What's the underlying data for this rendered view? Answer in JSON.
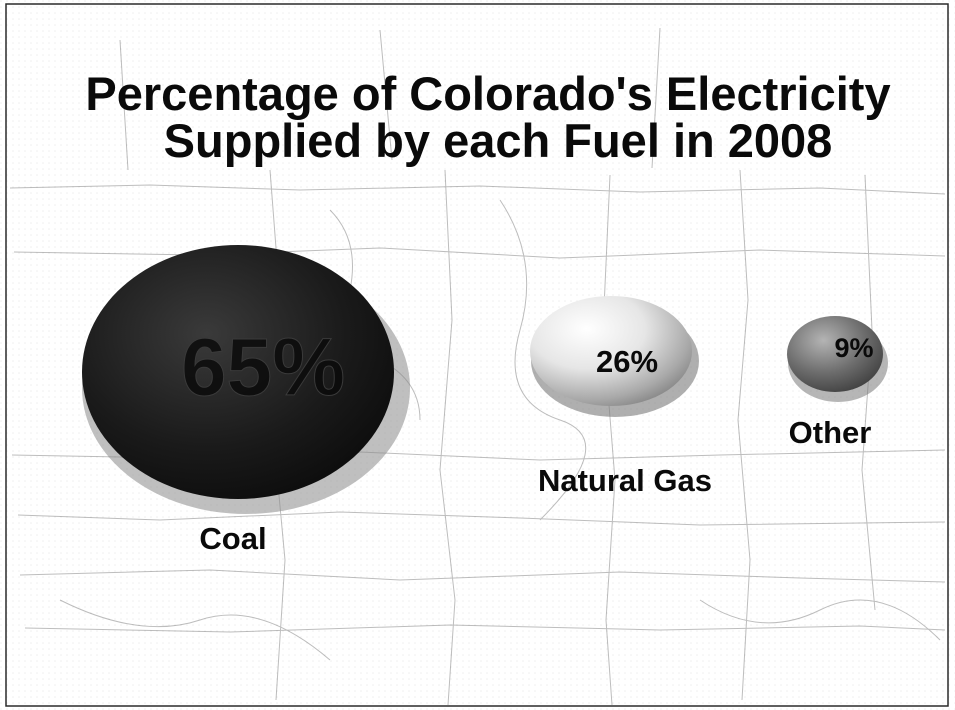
{
  "chart_data": {
    "type": "bubble",
    "title": [
      "Percentage of Colorado's Electricity",
      "Supplied by each Fuel in 2008"
    ],
    "categories": [
      "Coal",
      "Natural Gas",
      "Other"
    ],
    "values": [
      65,
      26,
      9
    ],
    "value_labels": [
      "65%",
      "26%",
      "9%"
    ],
    "unit": "%",
    "legend": "none",
    "grid": false,
    "colors": {
      "Coal": "#1c1c1c",
      "Natural Gas": "#d9d9d9",
      "Other": "#6e6e6e",
      "map_lines": "#b9b9b9",
      "frame": "#2a2a2a"
    }
  }
}
